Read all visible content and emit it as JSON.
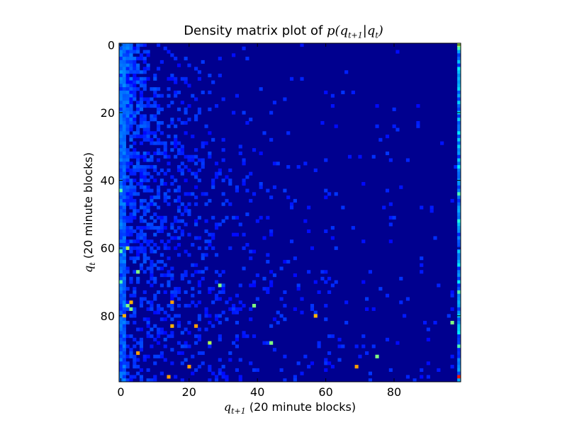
{
  "chart_data": {
    "type": "heatmap",
    "title": "Density matrix plot of p(q_{t+1}|q_t)",
    "title_text": "Density matrix plot of ",
    "title_math": "p(q",
    "title_math_sub1": "t+1",
    "title_math_mid": "|q",
    "title_math_sub2": "t",
    "title_math_end": ")",
    "xlabel": "q_{t+1} (20 minute blocks)",
    "xlabel_math": "q",
    "xlabel_sub": "t+1",
    "xlabel_text": " (20 minute blocks)",
    "ylabel": "q_t (20 minute blocks)",
    "ylabel_math": "q",
    "ylabel_sub": "t",
    "ylabel_text": " (20 minute blocks)",
    "x_ticks": [
      "0",
      "20",
      "40",
      "60",
      "80"
    ],
    "x_tick_values": [
      0,
      20,
      40,
      60,
      80
    ],
    "y_ticks": [
      "0",
      "20",
      "40",
      "60",
      "80"
    ],
    "y_tick_values": [
      0,
      20,
      40,
      60,
      80
    ],
    "xlim": [
      0,
      99
    ],
    "ylim": [
      0,
      99
    ],
    "grid_size": 100,
    "colormap": "jet",
    "background_color": "#00008f",
    "highlights": [
      {
        "row": 0,
        "col": 99,
        "value": 0.55
      },
      {
        "row": 1,
        "col": 99,
        "value": 0.45
      },
      {
        "row": 20,
        "col": 99,
        "value": 0.35
      },
      {
        "row": 43,
        "col": 0,
        "value": 0.45
      },
      {
        "row": 44,
        "col": 99,
        "value": 0.45
      },
      {
        "row": 52,
        "col": 99,
        "value": 0.4
      },
      {
        "row": 60,
        "col": 2,
        "value": 0.55
      },
      {
        "row": 61,
        "col": 0,
        "value": 0.45
      },
      {
        "row": 67,
        "col": 5,
        "value": 0.5
      },
      {
        "row": 70,
        "col": 0,
        "value": 0.45
      },
      {
        "row": 71,
        "col": 29,
        "value": 0.5
      },
      {
        "row": 73,
        "col": 99,
        "value": 0.45
      },
      {
        "row": 76,
        "col": 3,
        "value": 0.7
      },
      {
        "row": 76,
        "col": 15,
        "value": 0.72
      },
      {
        "row": 77,
        "col": 2,
        "value": 0.5
      },
      {
        "row": 77,
        "col": 39,
        "value": 0.5
      },
      {
        "row": 78,
        "col": 3,
        "value": 0.5
      },
      {
        "row": 80,
        "col": 1,
        "value": 0.7
      },
      {
        "row": 80,
        "col": 57,
        "value": 0.7
      },
      {
        "row": 82,
        "col": 97,
        "value": 0.5
      },
      {
        "row": 83,
        "col": 15,
        "value": 0.7
      },
      {
        "row": 83,
        "col": 22,
        "value": 0.72
      },
      {
        "row": 88,
        "col": 26,
        "value": 0.55
      },
      {
        "row": 88,
        "col": 44,
        "value": 0.5
      },
      {
        "row": 89,
        "col": 99,
        "value": 0.45
      },
      {
        "row": 91,
        "col": 5,
        "value": 0.72
      },
      {
        "row": 92,
        "col": 75,
        "value": 0.5
      },
      {
        "row": 95,
        "col": 20,
        "value": 0.72
      },
      {
        "row": 95,
        "col": 69,
        "value": 0.72
      },
      {
        "row": 98,
        "col": 14,
        "value": 0.72
      },
      {
        "row": 98,
        "col": 99,
        "value": 0.85
      }
    ]
  }
}
